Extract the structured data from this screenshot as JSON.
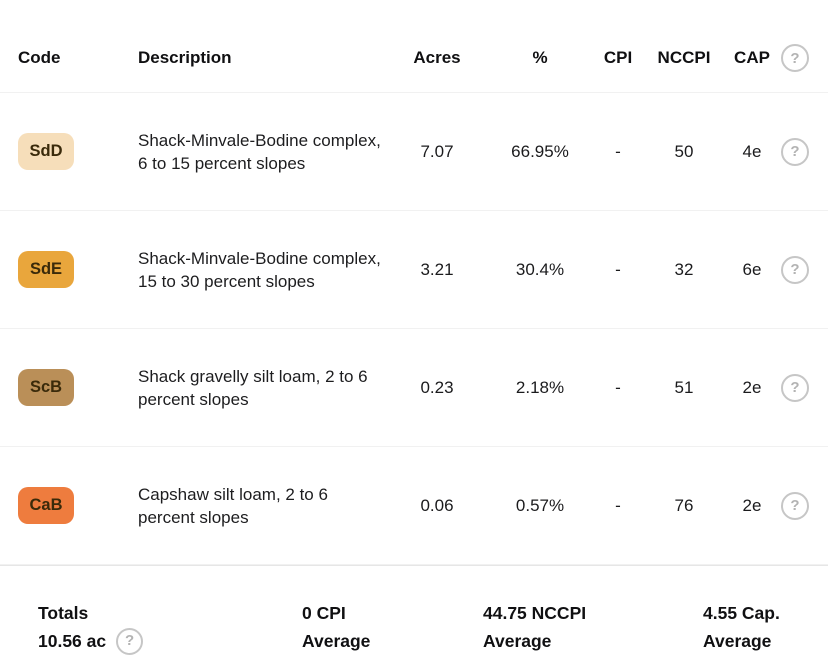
{
  "icons": {
    "help": "?"
  },
  "header": {
    "columns": [
      "Code",
      "Description",
      "Acres",
      "%",
      "CPI",
      "NCCPI",
      "CAP"
    ]
  },
  "table": {
    "rows": [
      {
        "code": "SdD",
        "badge_color": "#f6deba",
        "description": "Shack-Minvale-Bodine complex, 6 to 15 percent slopes",
        "acres": "7.07",
        "pct": "66.95%",
        "cpi": "-",
        "nccpi": "50",
        "cap": "4e"
      },
      {
        "code": "SdE",
        "badge_color": "#e9a63c",
        "description": "Shack-Minvale-Bodine complex, 15 to 30 percent slopes",
        "acres": "3.21",
        "pct": "30.4%",
        "cpi": "-",
        "nccpi": "32",
        "cap": "6e"
      },
      {
        "code": "ScB",
        "badge_color": "#ba8f58",
        "description": "Shack gravelly silt loam, 2 to 6 percent slopes",
        "acres": "0.23",
        "pct": "2.18%",
        "cpi": "-",
        "nccpi": "51",
        "cap": "2e"
      },
      {
        "code": "CaB",
        "badge_color": "#ee7c3e",
        "description": "Capshaw silt loam, 2 to 6 percent slopes",
        "acres": "0.06",
        "pct": "0.57%",
        "cpi": "-",
        "nccpi": "76",
        "cap": "2e"
      }
    ]
  },
  "footer": {
    "totals_label": "Totals",
    "totals_value": "10.56 ac",
    "cpi_value": "0 CPI",
    "cpi_label": "Average",
    "nccpi_value": "44.75 NCCPI",
    "nccpi_label": "Average",
    "cap_value": "4.55 Cap.",
    "cap_label": "Average"
  }
}
